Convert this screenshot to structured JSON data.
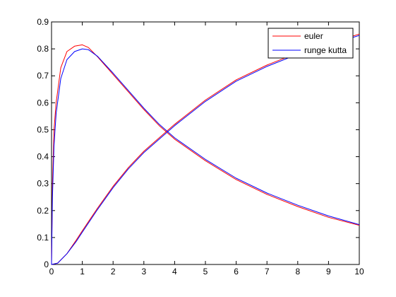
{
  "chart_data": {
    "type": "line",
    "xlim": [
      0,
      10
    ],
    "ylim": [
      0,
      0.9
    ],
    "xticks": [
      0,
      1,
      2,
      3,
      4,
      5,
      6,
      7,
      8,
      9,
      10
    ],
    "yticks": [
      0,
      0.1,
      0.2,
      0.3,
      0.4,
      0.5,
      0.6,
      0.7,
      0.8,
      0.9
    ],
    "xtick_labels": [
      "0",
      "1",
      "2",
      "3",
      "4",
      "5",
      "6",
      "7",
      "8",
      "9",
      "10"
    ],
    "ytick_labels": [
      "0",
      "0.1",
      "0.2",
      "0.3",
      "0.4",
      "0.5",
      "0.6",
      "0.7",
      "0.8",
      "0.9"
    ],
    "grid": false,
    "legend_position": "top-right",
    "legend": [
      "euler",
      "runge kutta"
    ],
    "series": [
      {
        "name": "euler",
        "color": "#ff0000",
        "curves": [
          {
            "x": [
              0,
              0.03,
              0.08,
              0.15,
              0.3,
              0.5,
              0.75,
              1.0,
              1.2,
              1.5,
              2.0,
              2.5,
              3.0,
              3.5,
              4.0,
              5.0,
              6.0,
              7.0,
              8.0,
              9.0,
              10.0
            ],
            "y": [
              0.0,
              0.3,
              0.5,
              0.6,
              0.73,
              0.79,
              0.81,
              0.815,
              0.805,
              0.77,
              0.705,
              0.64,
              0.575,
              0.515,
              0.465,
              0.385,
              0.315,
              0.26,
              0.215,
              0.175,
              0.145
            ]
          },
          {
            "x": [
              0,
              0.2,
              0.5,
              0.8,
              1.0,
              1.5,
              2.0,
              2.5,
              3.0,
              4.0,
              5.0,
              6.0,
              7.0,
              8.0,
              9.0,
              10.0
            ],
            "y": [
              0.0,
              0.005,
              0.04,
              0.09,
              0.125,
              0.21,
              0.29,
              0.36,
              0.42,
              0.52,
              0.61,
              0.685,
              0.74,
              0.785,
              0.82,
              0.855
            ]
          }
        ]
      },
      {
        "name": "runge kutta",
        "color": "#0000ff",
        "curves": [
          {
            "x": [
              0,
              0.03,
              0.08,
              0.15,
              0.3,
              0.5,
              0.75,
              1.0,
              1.2,
              1.5,
              2.0,
              2.5,
              3.0,
              3.5,
              4.0,
              5.0,
              6.0,
              7.0,
              8.0,
              9.0,
              10.0
            ],
            "y": [
              0.0,
              0.25,
              0.44,
              0.56,
              0.69,
              0.76,
              0.79,
              0.8,
              0.797,
              0.772,
              0.71,
              0.645,
              0.58,
              0.52,
              0.47,
              0.39,
              0.32,
              0.265,
              0.22,
              0.18,
              0.148
            ]
          },
          {
            "x": [
              0,
              0.2,
              0.5,
              0.8,
              1.0,
              1.5,
              2.0,
              2.5,
              3.0,
              4.0,
              5.0,
              6.0,
              7.0,
              8.0,
              9.0,
              10.0
            ],
            "y": [
              0.0,
              0.005,
              0.04,
              0.085,
              0.12,
              0.205,
              0.285,
              0.355,
              0.415,
              0.515,
              0.605,
              0.68,
              0.735,
              0.78,
              0.815,
              0.85
            ]
          }
        ]
      }
    ]
  }
}
